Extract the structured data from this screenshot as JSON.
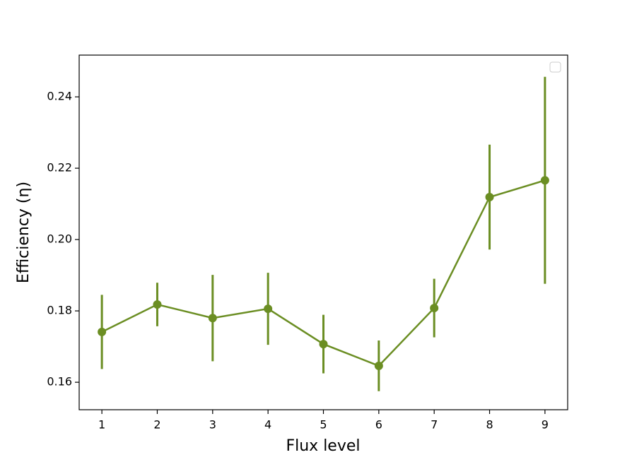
{
  "chart_data": {
    "type": "errorbar_line",
    "x_label": "Flux level",
    "y_label": "Efficiency (η)",
    "x": [
      1,
      2,
      3,
      4,
      5,
      6,
      7,
      8,
      9
    ],
    "series": [
      {
        "color": "#6b8e23",
        "values": [
          0.1741,
          0.1818,
          0.178,
          0.1806,
          0.1707,
          0.1646,
          0.1808,
          0.2119,
          0.2166
        ],
        "errors": [
          0.0104,
          0.0061,
          0.0121,
          0.0101,
          0.0082,
          0.0071,
          0.0082,
          0.0147,
          0.029
        ]
      }
    ],
    "xlim": [
      0.59,
      9.41
    ],
    "xticks": [
      1,
      2,
      3,
      4,
      5,
      6,
      7,
      8,
      9
    ],
    "ylim": [
      0.1523,
      0.2517
    ],
    "yticks": [
      {
        "value": 0.16,
        "label": "0.16"
      },
      {
        "value": 0.18,
        "label": "0.18"
      },
      {
        "value": 0.2,
        "label": "0.20"
      },
      {
        "value": 0.22,
        "label": "0.22"
      },
      {
        "value": 0.24,
        "label": "0.24"
      }
    ],
    "legend": "upper right",
    "grid": false
  }
}
